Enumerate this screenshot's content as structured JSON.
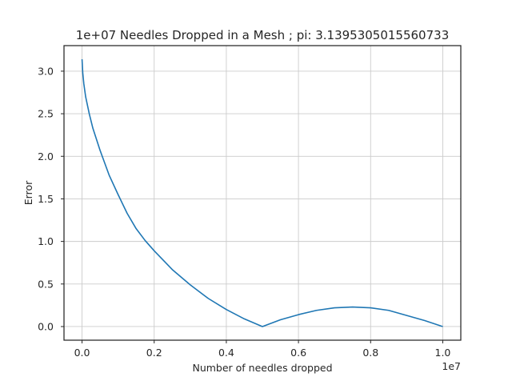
{
  "chart_data": {
    "type": "line",
    "title": "1e+07 Needles Dropped in a Mesh ; pi: 3.1395305015560733",
    "xlabel": "Number of needles dropped",
    "ylabel": "Error",
    "x_offset_label": "1e7",
    "xlim": [
      -0.05,
      1.05
    ],
    "ylim": [
      -0.16,
      3.3
    ],
    "x_ticks": [
      0.0,
      0.2,
      0.4,
      0.6,
      0.8,
      1.0
    ],
    "x_tick_labels": [
      "0.0",
      "0.2",
      "0.4",
      "0.6",
      "0.8",
      "1.0"
    ],
    "y_ticks": [
      0.0,
      0.5,
      1.0,
      1.5,
      2.0,
      2.5,
      3.0
    ],
    "y_tick_labels": [
      "0.0",
      "0.5",
      "1.0",
      "1.5",
      "2.0",
      "2.5",
      "3.0"
    ],
    "grid": true,
    "series": [
      {
        "color": "#1f77b4",
        "x": [
          0.0,
          0.002,
          0.005,
          0.01,
          0.02,
          0.03,
          0.05,
          0.075,
          0.1,
          0.125,
          0.15,
          0.175,
          0.2,
          0.25,
          0.3,
          0.35,
          0.4,
          0.45,
          0.5,
          0.55,
          0.6,
          0.65,
          0.7,
          0.75,
          0.8,
          0.85,
          0.9,
          0.95,
          1.0
        ],
        "y": [
          3.14,
          2.98,
          2.85,
          2.7,
          2.5,
          2.33,
          2.07,
          1.78,
          1.55,
          1.33,
          1.15,
          1.01,
          0.89,
          0.67,
          0.49,
          0.33,
          0.2,
          0.09,
          0.0,
          0.08,
          0.14,
          0.19,
          0.22,
          0.23,
          0.22,
          0.19,
          0.13,
          0.07,
          0.0
        ]
      }
    ]
  }
}
